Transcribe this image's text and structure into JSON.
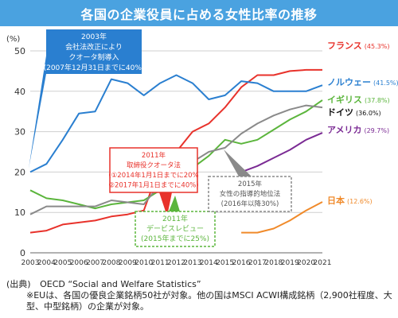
{
  "title": "各国の企業役員に占める女性比率の推移",
  "source": {
    "label": "(出典)",
    "text": "OECD “Social and Welfare Statistics”",
    "note": "※EUは、各国の優良企業銘柄50社が対象。他の国はMSCI ACWI構成銘柄（2,900社程度、大型、中型銘柄）の企業が対象。"
  },
  "colors": {
    "title_bg": "#4aa2e0",
    "france": "#e8322b",
    "norway": "#2a7fd0",
    "uk": "#5bb53c",
    "germany": "#8a8a8a",
    "usa": "#7b2b94",
    "japan": "#f08a2a"
  },
  "chart_data": {
    "type": "line",
    "ylabel": "(%)",
    "ylim": [
      0,
      50
    ],
    "yticks": [
      0,
      10,
      20,
      30,
      40,
      50
    ],
    "x": [
      2003,
      2004,
      2005,
      2006,
      2007,
      2008,
      2009,
      2010,
      2011,
      2012,
      2013,
      2014,
      2015,
      2016,
      2017,
      2018,
      2019,
      2020,
      2021
    ],
    "series": [
      {
        "name": "フランス",
        "label": "(45.3%)",
        "color": "#e8322b",
        "values": [
          5,
          5.5,
          7,
          7.5,
          8,
          9,
          9.5,
          10.5,
          21.5,
          25,
          30,
          32,
          36,
          41,
          44,
          44,
          45,
          45.3,
          45.3
        ]
      },
      {
        "name": "ノルウェー",
        "label": "(41.5%)",
        "color": "#2a7fd0",
        "values": [
          20,
          22,
          28,
          34.5,
          35,
          43,
          42,
          39,
          42,
          44,
          42,
          38,
          39,
          42.5,
          42,
          40,
          40,
          40,
          41.5
        ]
      },
      {
        "name": "イギリス",
        "label": "(37.8%)",
        "color": "#5bb53c",
        "values": [
          15.5,
          13.5,
          13,
          12,
          11,
          12,
          12.5,
          13,
          15.5,
          18,
          21,
          24,
          28,
          27,
          28,
          30.5,
          33,
          35,
          37.8
        ]
      },
      {
        "name": "ドイツ",
        "label": "(36.0%)",
        "color": "#8a8a8a",
        "values": [
          9.5,
          11.5,
          11.5,
          11.5,
          11.5,
          13,
          12.5,
          12,
          17,
          19.5,
          22.5,
          25,
          26,
          29.5,
          32,
          34,
          35.5,
          36.5,
          36
        ]
      },
      {
        "name": "アメリカ",
        "label": "(29.7%)",
        "color": "#7b2b94",
        "values": [
          null,
          null,
          null,
          null,
          null,
          null,
          null,
          null,
          null,
          null,
          null,
          null,
          null,
          20,
          21.5,
          23.5,
          25.5,
          28,
          29.7
        ]
      },
      {
        "name": "日本",
        "label": "(12.6%)",
        "color": "#f08a2a",
        "values": [
          null,
          null,
          null,
          null,
          null,
          null,
          null,
          null,
          null,
          null,
          null,
          null,
          null,
          5,
          5,
          6,
          8,
          10.5,
          12.6
        ]
      }
    ],
    "annotations": [
      {
        "lines": [
          "2003年",
          "会社法改正により",
          "クオータ制導入",
          "(2007年12月31日までに40%)"
        ],
        "style": "filled",
        "color": "#2a7fd0"
      },
      {
        "lines": [
          "2011年",
          "取締役クオータ法",
          "(①2014年1月1日までに20%",
          "②2017年1月1日までに40%)"
        ],
        "style": "outline",
        "color": "#e8322b"
      },
      {
        "lines": [
          "2011年",
          "デービスレビュー",
          "(2015年までに25%)"
        ],
        "style": "outline-dashed",
        "color": "#5bb53c"
      },
      {
        "lines": [
          "2015年",
          "女性の指導的地位法",
          "(2016年以降30%)"
        ],
        "style": "outline-dashed",
        "color": "#8a8a8a"
      }
    ]
  }
}
